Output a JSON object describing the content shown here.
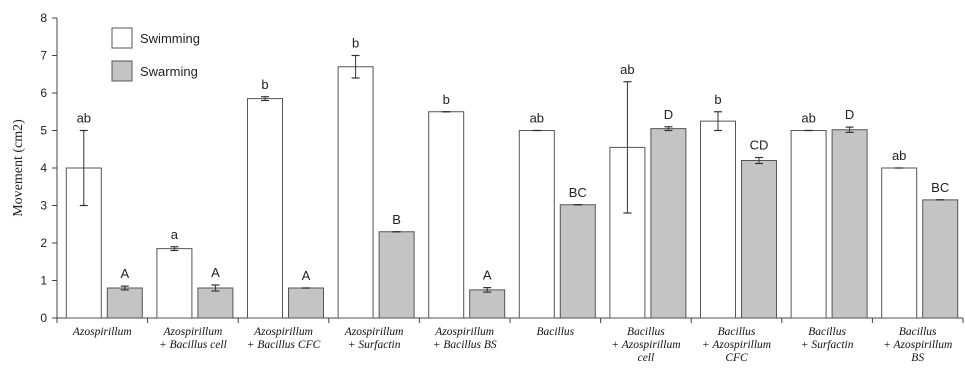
{
  "chart_data": {
    "type": "bar",
    "ylabel": "Movement (cm2)",
    "ylim": [
      0,
      8
    ],
    "yticks": [
      0,
      1,
      2,
      3,
      4,
      5,
      6,
      7,
      8
    ],
    "categories": [
      [
        "Azospirillum"
      ],
      [
        "Azospirillum",
        "+ Bacillus cell"
      ],
      [
        "Azospirillum",
        "+ Bacillus CFC"
      ],
      [
        "Azospirillum",
        "+ Surfactin"
      ],
      [
        "Azospirillum",
        "+ Bacillus BS"
      ],
      [
        "Bacillus"
      ],
      [
        "Bacillus",
        "+ Azospirillum",
        "cell"
      ],
      [
        "Bacillus",
        "+ Azospirillum",
        "CFC"
      ],
      [
        "Bacillus",
        "+ Surfactin"
      ],
      [
        "Bacillus",
        "+ Azospirillum",
        "BS"
      ]
    ],
    "series": [
      {
        "name": "Swimming",
        "color": "#ffffff",
        "values": [
          4.0,
          1.85,
          5.85,
          6.7,
          5.5,
          5.0,
          4.55,
          5.25,
          5.0,
          4.0
        ],
        "errors": [
          1.0,
          0.05,
          0.05,
          0.3,
          0.0,
          0.0,
          1.75,
          0.25,
          0.0,
          0.0
        ],
        "labels": [
          "ab",
          "a",
          "b",
          "b",
          "b",
          "ab",
          "ab",
          "b",
          "ab",
          "ab"
        ]
      },
      {
        "name": "Swarming",
        "color": "#c4c4c4",
        "values": [
          0.8,
          0.8,
          0.8,
          2.3,
          0.75,
          3.02,
          5.05,
          4.2,
          5.02,
          3.15
        ],
        "errors": [
          0.05,
          0.08,
          0.0,
          0.0,
          0.06,
          0.0,
          0.05,
          0.08,
          0.07,
          0.0
        ],
        "labels": [
          "A",
          "A",
          "A",
          "B",
          "A",
          "BC",
          "D",
          "CD",
          "D",
          "BC"
        ]
      }
    ],
    "legend_position": "top-left",
    "grid": false
  }
}
